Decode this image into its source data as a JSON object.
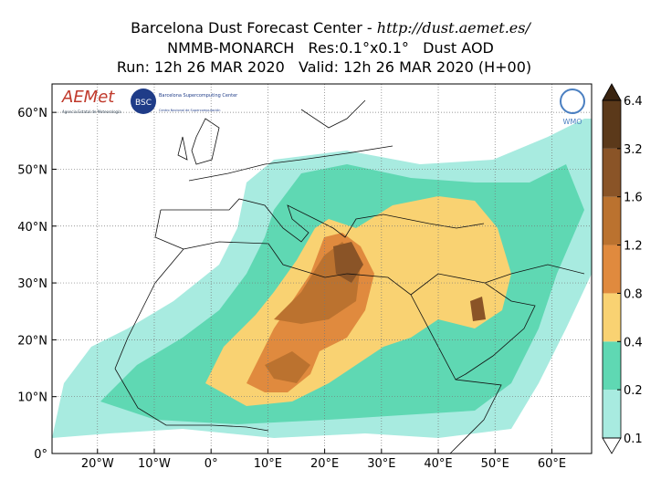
{
  "header": {
    "title": "Barcelona Dust Forecast Center - ",
    "url": "http://dust.aemet.es/",
    "subtitle": "NMMB-MONARCH   Res:0.1°x0.1°   Dust AOD",
    "run": "Run: 12h 26 MAR 2020   Valid: 12h 26 MAR 2020 (H+00)"
  },
  "map": {
    "xlim": [
      -28,
      67
    ],
    "ylim": [
      0,
      65
    ],
    "xticks": [
      {
        "value": -20,
        "label": "20°W"
      },
      {
        "value": -10,
        "label": "10°W"
      },
      {
        "value": 0,
        "label": "0°"
      },
      {
        "value": 10,
        "label": "10°E"
      },
      {
        "value": 20,
        "label": "20°E"
      },
      {
        "value": 30,
        "label": "30°E"
      },
      {
        "value": 40,
        "label": "40°E"
      },
      {
        "value": 50,
        "label": "50°E"
      },
      {
        "value": 60,
        "label": "60°E"
      }
    ],
    "yticks": [
      {
        "value": 0,
        "label": "0°"
      },
      {
        "value": 10,
        "label": "10°N"
      },
      {
        "value": 20,
        "label": "20°N"
      },
      {
        "value": 30,
        "label": "30°N"
      },
      {
        "value": 40,
        "label": "40°N"
      },
      {
        "value": 50,
        "label": "50°N"
      },
      {
        "value": 60,
        "label": "60°N"
      }
    ],
    "grid": true
  },
  "colorbar": {
    "levels": [
      0.1,
      0.2,
      0.4,
      0.8,
      1.2,
      1.6,
      3.2,
      6.4
    ],
    "colors": [
      "#a8ebe0",
      "#5fd8b3",
      "#f9d272",
      "#e08a3e",
      "#bb722f",
      "#8a5427",
      "#5b391a"
    ],
    "under_color": "#ffffff",
    "over_color": "#3a2410"
  },
  "logos": {
    "aemet": "AEMet",
    "aemet_sub": "Agencia Estatal de Meteorología",
    "bsc": "BSC",
    "bsc_name": "Barcelona Supercomputing Center",
    "bsc_sub": "Centro Nacional de Supercomputación",
    "wmo": "WMO"
  }
}
